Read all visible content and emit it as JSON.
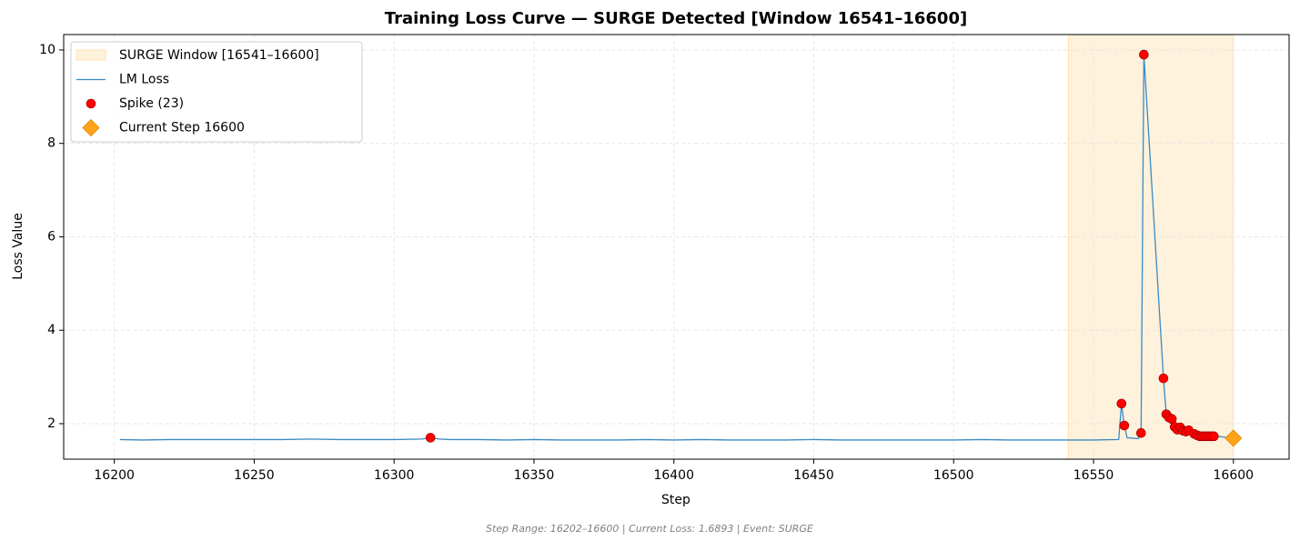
{
  "chart_data": {
    "type": "line",
    "title": "Training Loss Curve — SURGE Detected [Window 16541–16600]",
    "xlabel": "Step",
    "ylabel": "Loss Value",
    "footer": "Step Range: 16202–16600 | Current Loss: 1.6893 | Event: SURGE",
    "xlim": [
      16181.9,
      16619.9
    ],
    "ylim": [
      1.24,
      10.33
    ],
    "xticks": [
      16200,
      16250,
      16300,
      16350,
      16400,
      16450,
      16500,
      16550,
      16600
    ],
    "yticks": [
      2,
      4,
      6,
      8,
      10
    ],
    "grid": true,
    "legend": "upper left",
    "window": {
      "name": "SURGE Window [16541–16600]",
      "range": [
        16541,
        16600
      ],
      "color": "#fff2dc"
    },
    "series": [
      {
        "name": "LM Loss",
        "type": "line",
        "color": "#3a8ac4",
        "x": [
          16202,
          16210,
          16220,
          16230,
          16240,
          16250,
          16260,
          16270,
          16280,
          16290,
          16300,
          16310,
          16313,
          16316,
          16320,
          16330,
          16340,
          16350,
          16360,
          16370,
          16380,
          16390,
          16400,
          16410,
          16420,
          16430,
          16440,
          16450,
          16460,
          16470,
          16480,
          16490,
          16500,
          16510,
          16520,
          16530,
          16540,
          16550,
          16559,
          16560,
          16561,
          16562,
          16566,
          16567,
          16568,
          16575,
          16576,
          16577,
          16578,
          16579,
          16580,
          16581,
          16582,
          16583,
          16584,
          16586,
          16587,
          16588,
          16589,
          16590,
          16591,
          16592,
          16593,
          16594,
          16597,
          16600
        ],
        "values": [
          1.66,
          1.65,
          1.66,
          1.66,
          1.66,
          1.66,
          1.66,
          1.67,
          1.66,
          1.66,
          1.66,
          1.67,
          1.7,
          1.67,
          1.66,
          1.66,
          1.65,
          1.66,
          1.65,
          1.65,
          1.65,
          1.66,
          1.65,
          1.66,
          1.65,
          1.65,
          1.65,
          1.66,
          1.65,
          1.65,
          1.65,
          1.65,
          1.65,
          1.66,
          1.65,
          1.65,
          1.65,
          1.65,
          1.66,
          2.43,
          1.96,
          1.7,
          1.68,
          1.8,
          9.9,
          2.97,
          2.2,
          2.13,
          2.1,
          1.93,
          1.87,
          1.92,
          1.85,
          1.83,
          1.86,
          1.78,
          1.75,
          1.73,
          1.73,
          1.73,
          1.73,
          1.73,
          1.73,
          1.73,
          1.71,
          1.69
        ]
      },
      {
        "name": "Spike (23)",
        "type": "scatter",
        "marker": "circle",
        "color": "#ff0000",
        "x": [
          16313,
          16560,
          16561,
          16567,
          16568,
          16575,
          16576,
          16577,
          16578,
          16579,
          16580,
          16581,
          16582,
          16583,
          16584,
          16586,
          16587,
          16588,
          16589,
          16590,
          16591,
          16592,
          16593
        ],
        "values": [
          1.7,
          2.43,
          1.96,
          1.8,
          9.9,
          2.97,
          2.2,
          2.13,
          2.1,
          1.93,
          1.87,
          1.92,
          1.85,
          1.83,
          1.86,
          1.78,
          1.75,
          1.73,
          1.73,
          1.73,
          1.73,
          1.73,
          1.73
        ]
      },
      {
        "name": "Current Step 16600",
        "type": "scatter",
        "marker": "diamond",
        "color": "#ffa31a",
        "x": [
          16600
        ],
        "values": [
          1.6893
        ]
      }
    ]
  }
}
